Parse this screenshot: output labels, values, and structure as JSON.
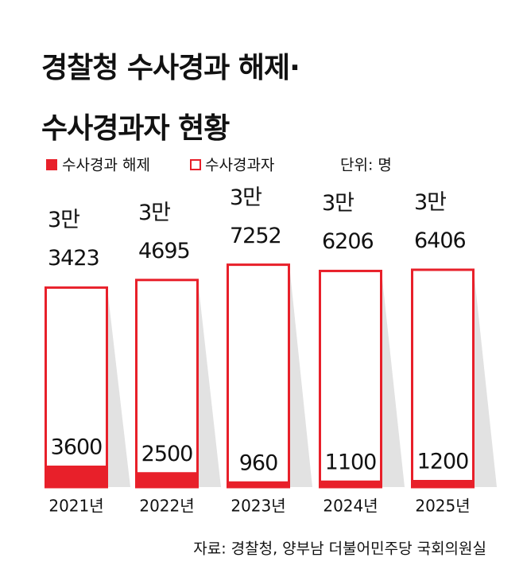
{
  "chart_data": {
    "type": "overlap-bar",
    "title": "경찰청 수사경과 해제· 수사경과자 현황",
    "unit": "단위: 명",
    "source": "자료: 경찰청, 양부남 더불어민주당 국회의원실",
    "categories": [
      "2021년",
      "2022년",
      "2023년",
      "2024년",
      "2025년"
    ],
    "series": [
      {
        "name": "수사경과자",
        "color": "#e8202a",
        "values": [
          33423,
          34695,
          37252,
          36206,
          36406
        ],
        "value_labels": [
          "3만 3423",
          "3만 4695",
          "3만 7252",
          "3만 6206",
          "3만 6406"
        ]
      },
      {
        "name": "수사경과 해제",
        "color": "#e8202a",
        "values": [
          3600,
          2500,
          960,
          1100,
          1200
        ]
      }
    ],
    "ylim": [
      0,
      40000
    ]
  }
}
